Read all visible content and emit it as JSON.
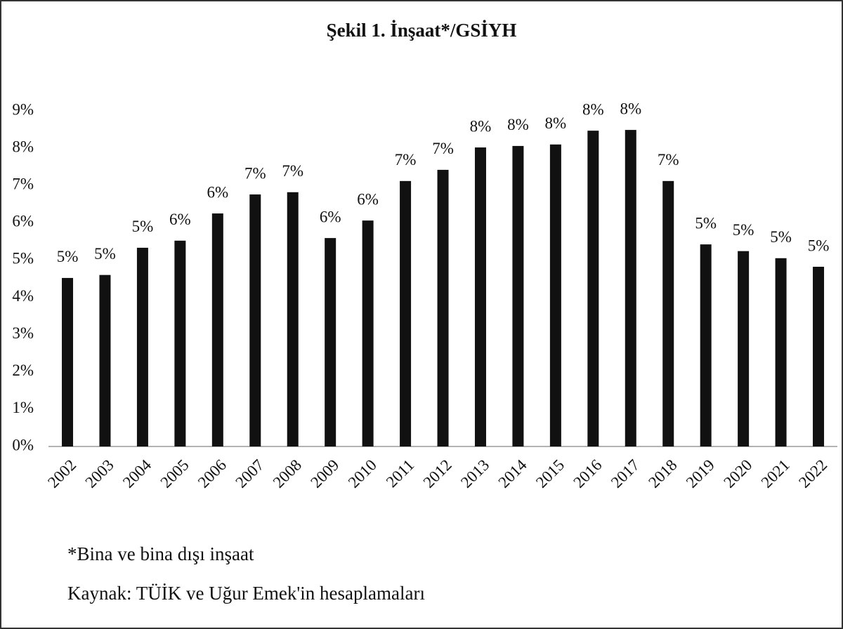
{
  "chart_data": {
    "type": "bar",
    "title": "Şekil 1. İnşaat*/GSİYH",
    "categories": [
      "2002",
      "2003",
      "2004",
      "2005",
      "2006",
      "2007",
      "2008",
      "2009",
      "2010",
      "2011",
      "2012",
      "2013",
      "2014",
      "2015",
      "2016",
      "2017",
      "2018",
      "2019",
      "2020",
      "2021",
      "2022"
    ],
    "values": [
      4.52,
      4.6,
      5.33,
      5.52,
      6.25,
      6.76,
      6.82,
      5.59,
      6.06,
      7.12,
      7.42,
      8.02,
      8.06,
      8.1,
      8.47,
      8.49,
      7.12,
      5.42,
      5.24,
      5.05,
      4.82
    ],
    "value_labels": [
      "5%",
      "5%",
      "5%",
      "6%",
      "6%",
      "7%",
      "7%",
      "6%",
      "6%",
      "7%",
      "7%",
      "8%",
      "8%",
      "8%",
      "8%",
      "8%",
      "7%",
      "5%",
      "5%",
      "5%",
      "5%"
    ],
    "color": "#111111",
    "ylim": [
      0,
      9
    ],
    "yticks": [
      {
        "value": 0,
        "label": "0%"
      },
      {
        "value": 1,
        "label": "1%"
      },
      {
        "value": 2,
        "label": "2%"
      },
      {
        "value": 3,
        "label": "3%"
      },
      {
        "value": 4,
        "label": "4%"
      },
      {
        "value": 5,
        "label": "5%"
      },
      {
        "value": 6,
        "label": "6%"
      },
      {
        "value": 7,
        "label": "7%"
      },
      {
        "value": 8,
        "label": "8%"
      },
      {
        "value": 9,
        "label": "9%"
      }
    ],
    "grid": false,
    "notes": [
      "*Bina ve bina dışı inşaat",
      "Kaynak: TÜİK ve Uğur Emek'in hesaplamaları"
    ]
  }
}
